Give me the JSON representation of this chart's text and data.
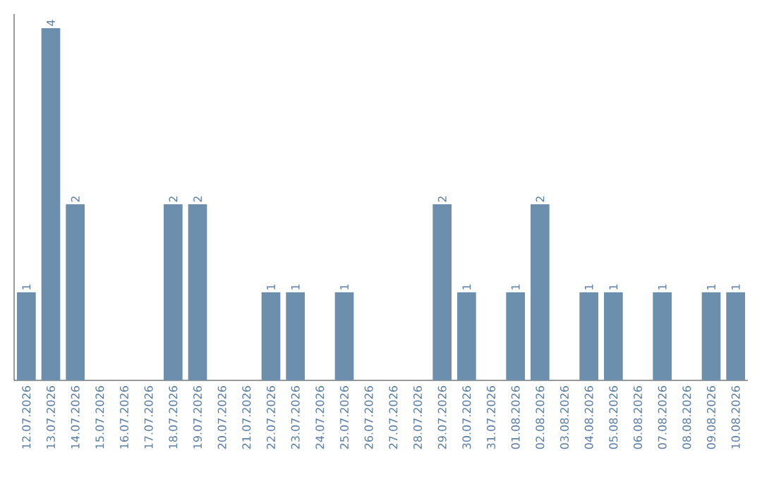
{
  "chart_data": {
    "type": "bar",
    "categories": [
      "12.07.2026",
      "13.07.2026",
      "14.07.2026",
      "15.07.2026",
      "16.07.2026",
      "17.07.2026",
      "18.07.2026",
      "19.07.2026",
      "20.07.2026",
      "21.07.2026",
      "22.07.2026",
      "23.07.2026",
      "24.07.2026",
      "25.07.2026",
      "26.07.2026",
      "27.07.2026",
      "28.07.2026",
      "29.07.2026",
      "30.07.2026",
      "31.07.2026",
      "01.08.2026",
      "02.08.2026",
      "03.08.2026",
      "04.08.2026",
      "05.08.2026",
      "06.08.2026",
      "07.08.2026",
      "08.08.2026",
      "09.08.2026",
      "10.08.2026"
    ],
    "values": [
      1,
      4,
      2,
      0,
      0,
      0,
      2,
      2,
      0,
      0,
      1,
      1,
      0,
      1,
      0,
      0,
      0,
      2,
      1,
      0,
      1,
      2,
      0,
      1,
      1,
      0,
      1,
      0,
      1,
      1
    ],
    "value_labels": [
      "1",
      "4",
      "2",
      null,
      null,
      null,
      "2",
      "2",
      null,
      null,
      "1",
      "1",
      null,
      "1",
      null,
      null,
      null,
      "2",
      "1",
      null,
      "1",
      "2",
      null,
      "1",
      "1",
      null,
      "1",
      null,
      "1",
      "1"
    ],
    "color": "#6d8fae",
    "ylim": [
      0,
      4.16
    ]
  }
}
